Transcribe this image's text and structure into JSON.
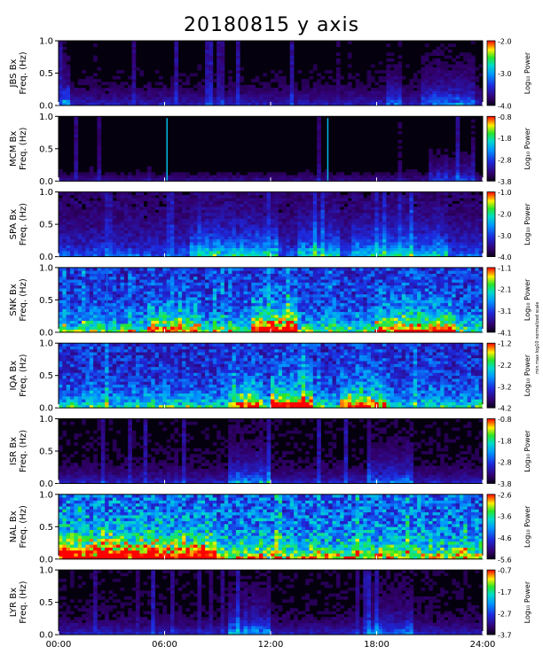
{
  "chart_data": {
    "type": "heatmap",
    "title": "20180815 y axis",
    "xlabel": "",
    "x_ticks": [
      "00:00",
      "06:00",
      "12:00",
      "18:00",
      "24:00"
    ],
    "xlim_hours": [
      0,
      24
    ],
    "y_ticks": [
      "0.0",
      "0.5",
      "1.0"
    ],
    "ylim_hz": [
      0,
      1.0
    ],
    "colorbar_label": "Log₁₀ Power",
    "side_note": "min max log10 normalized scale",
    "panels": [
      {
        "station": "JBS Bx",
        "ylabel": "Freq. (Hz)",
        "cbar_ticks": [
          "-2.0",
          "-3.0",
          "-4.0"
        ],
        "clim": [
          -4.0,
          -2.0
        ],
        "bg": 0.05,
        "low": 0.25,
        "lowSpread": 0.18,
        "events": [
          [
            0.3,
            0.6,
            0.45
          ],
          [
            20.5,
            23.5,
            0.35
          ],
          [
            18.5,
            19.5,
            0.3
          ]
        ],
        "lines": []
      },
      {
        "station": "MCM Bx",
        "ylabel": "Freq. (Hz)",
        "cbar_ticks": [
          "-0.8",
          "-1.8",
          "-2.8",
          "-3.8"
        ],
        "clim": [
          -3.8,
          -0.8
        ],
        "bg": 0.02,
        "low": 0.2,
        "lowSpread": 0.12,
        "events": [
          [
            21,
            23.5,
            0.3
          ]
        ],
        "lines": [
          [
            6.1,
            0.55
          ],
          [
            15.2,
            0.55
          ]
        ]
      },
      {
        "station": "SPA Bx",
        "ylabel": "Freq. (Hz)",
        "cbar_ticks": [
          "-1.0",
          "-2.0",
          "-3.0",
          "-4.0"
        ],
        "clim": [
          -4.0,
          -1.0
        ],
        "bg": 0.1,
        "low": 0.35,
        "lowSpread": 0.3,
        "events": [
          [
            7.5,
            12.5,
            0.45
          ],
          [
            13.5,
            16,
            0.4
          ],
          [
            16.5,
            22,
            0.35
          ]
        ],
        "lines": []
      },
      {
        "station": "SNK Bx",
        "ylabel": "Freq. (Hz)",
        "cbar_ticks": [
          "-1.1",
          "-2.1",
          "-3.1",
          "-4.1"
        ],
        "clim": [
          -4.1,
          -1.1
        ],
        "bg": 0.3,
        "low": 0.55,
        "lowSpread": 0.2,
        "events": [
          [
            11,
            13.5,
            0.75
          ],
          [
            18,
            22.5,
            0.55
          ],
          [
            5,
            8,
            0.5
          ]
        ],
        "lines": [
          [
            2.7,
            0.4
          ]
        ]
      },
      {
        "station": "IQA Bx",
        "ylabel": "Freq. (Hz)",
        "cbar_ticks": [
          "-1.2",
          "-2.2",
          "-3.2",
          "-4.2"
        ],
        "clim": [
          -4.2,
          -1.2
        ],
        "bg": 0.28,
        "low": 0.5,
        "lowSpread": 0.2,
        "events": [
          [
            12,
            14.5,
            0.75
          ],
          [
            16,
            18.5,
            0.55
          ],
          [
            9.5,
            11.5,
            0.5
          ]
        ],
        "lines": []
      },
      {
        "station": "ISR Bx",
        "ylabel": "Freq. (Hz)",
        "cbar_ticks": [
          "-0.8",
          "-1.8",
          "-2.8",
          "-3.8"
        ],
        "clim": [
          -3.8,
          -0.8
        ],
        "bg": 0.06,
        "low": 0.25,
        "lowSpread": 0.15,
        "events": [
          [
            9.5,
            12,
            0.4
          ],
          [
            17.5,
            20,
            0.35
          ]
        ],
        "lines": []
      },
      {
        "station": "NAL Bx",
        "ylabel": "Freq. (Hz)",
        "cbar_ticks": [
          "-2.6",
          "-3.6",
          "-4.6",
          "-5.6"
        ],
        "clim": [
          -5.6,
          -2.6
        ],
        "bg": 0.38,
        "low": 0.6,
        "lowSpread": 0.25,
        "events": [
          [
            0,
            9,
            0.6
          ]
        ],
        "lines": []
      },
      {
        "station": "LYR Bx",
        "ylabel": "Freq. (Hz)",
        "cbar_ticks": [
          "-0.7",
          "-1.7",
          "-2.7",
          "-3.7"
        ],
        "clim": [
          -3.7,
          -0.7
        ],
        "bg": 0.06,
        "low": 0.25,
        "lowSpread": 0.15,
        "events": [
          [
            9.5,
            12,
            0.4
          ],
          [
            17.5,
            20,
            0.35
          ]
        ],
        "lines": []
      }
    ]
  }
}
